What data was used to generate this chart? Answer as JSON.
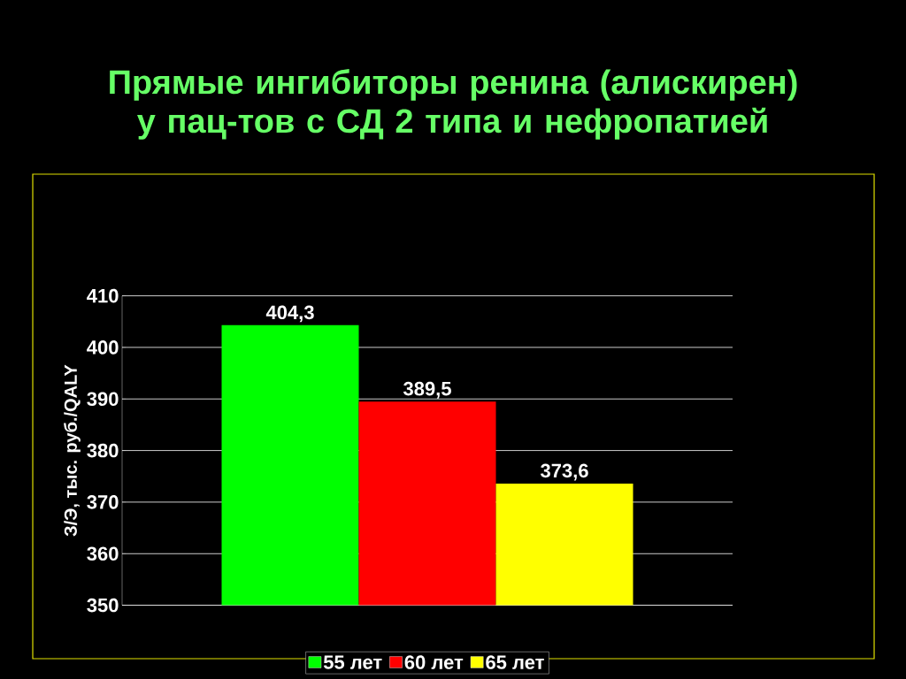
{
  "chart_data": {
    "type": "bar",
    "title": "Прямые ингибиторы ренина (алискирен) у пац-тов с СД 2 типа и нефропатией",
    "ylabel": "З/Э, тыс. руб./QALY",
    "categories": [
      null
    ],
    "series": [
      {
        "name": "55 лет",
        "color": "#00ff00",
        "values": [
          404.3
        ],
        "value_labels": [
          "404,3"
        ]
      },
      {
        "name": "60 лет",
        "color": "#ff0000",
        "values": [
          389.5
        ],
        "value_labels": [
          "389,5"
        ]
      },
      {
        "name": "65 лет",
        "color": "#ffff00",
        "values": [
          373.6
        ],
        "value_labels": [
          "373,6"
        ]
      }
    ],
    "ylim": [
      350,
      410
    ],
    "yticks": [
      350,
      360,
      370,
      380,
      390,
      400,
      410
    ],
    "grid": "y",
    "legend": "bottom"
  }
}
